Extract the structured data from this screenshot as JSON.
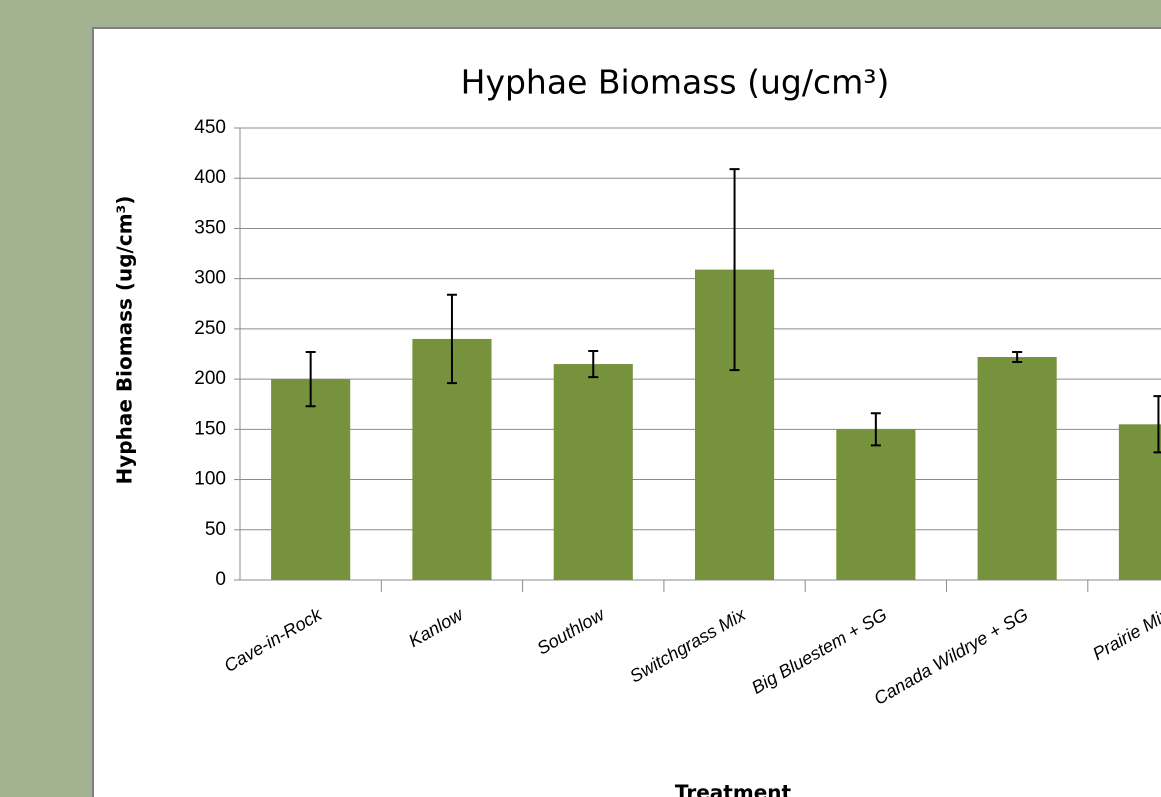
{
  "chart_data": {
    "type": "bar",
    "title": "Hyphae Biomass (ug/cm³)",
    "y_label": "Hyphae Biomass (ug/cm³)",
    "x_label": "Treatment",
    "categories": [
      "Cave-in-Rock",
      "Kanlow",
      "Southlow",
      "Switchgrass Mix",
      "Big Bluestem + SG",
      "Canada Wildrye + SG",
      "Prairie Mix"
    ],
    "values": [
      200,
      240,
      215,
      309,
      150,
      222,
      155
    ],
    "errors": [
      27,
      44,
      13,
      100,
      16,
      5,
      28
    ],
    "color": "#76923c",
    "ylim": [
      0,
      450
    ],
    "yticks": [
      0,
      50,
      100,
      150,
      200,
      250,
      300,
      350,
      400,
      450
    ],
    "grid": true
  }
}
